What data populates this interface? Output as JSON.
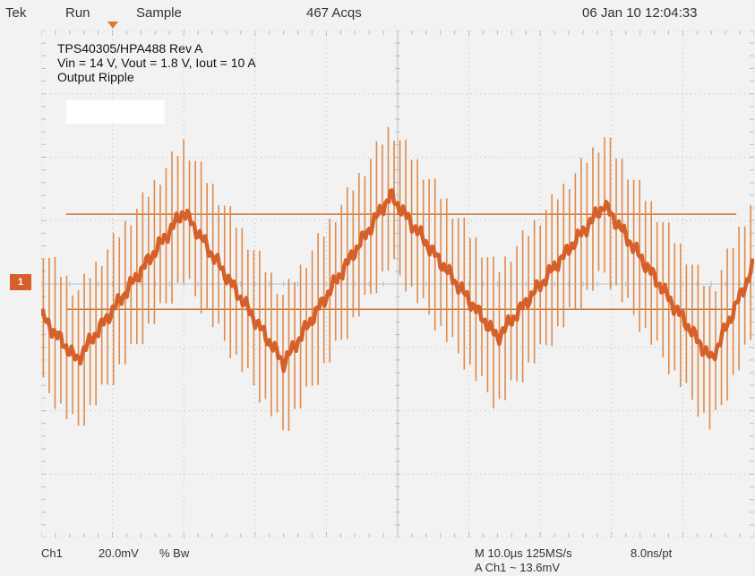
{
  "header": {
    "brand": "Tek",
    "run_state": "Run",
    "mode": "Sample",
    "acquisitions": "467 Acqs",
    "datetime": "06 Jan 10 12:04:33"
  },
  "notes": [
    "TPS40305/HPA488 Rev A",
    "Vin = 14 V, Vout = 1.8 V, Iout = 10 A",
    "Output Ripple"
  ],
  "channel_marker": "1",
  "footer": {
    "channel": "Ch1",
    "vdiv": "20.0mV",
    "bw": "% Bw",
    "timebase": "M 10.0µs 125MS/s",
    "sample_interval": "8.0ns/pt",
    "trigger": "A  Ch1  ~  13.6mV"
  },
  "colors": {
    "trace": "#d6602a",
    "trace_light": "#e08a4a",
    "grid": "#b5c0c4",
    "cursor": "#c8763a"
  },
  "chart_data": {
    "type": "line",
    "title": "",
    "xlabel": "",
    "ylabel": "",
    "x_unit": "µs",
    "y_unit": "mV",
    "x_divisions": 10,
    "y_divisions": 8,
    "xlim": [
      0,
      100
    ],
    "ylim": [
      -80,
      80
    ],
    "grid": true,
    "series": [
      {
        "x": [
          0,
          5,
          20,
          34,
          49,
          64,
          79,
          94,
          100
        ],
        "values": [
          -10,
          -24,
          23,
          -25,
          28,
          -17,
          25,
          -24,
          6
        ],
        "envelope_halfwidth_mv": 22
      }
    ],
    "cursors_mv": [
      22,
      -8
    ]
  }
}
